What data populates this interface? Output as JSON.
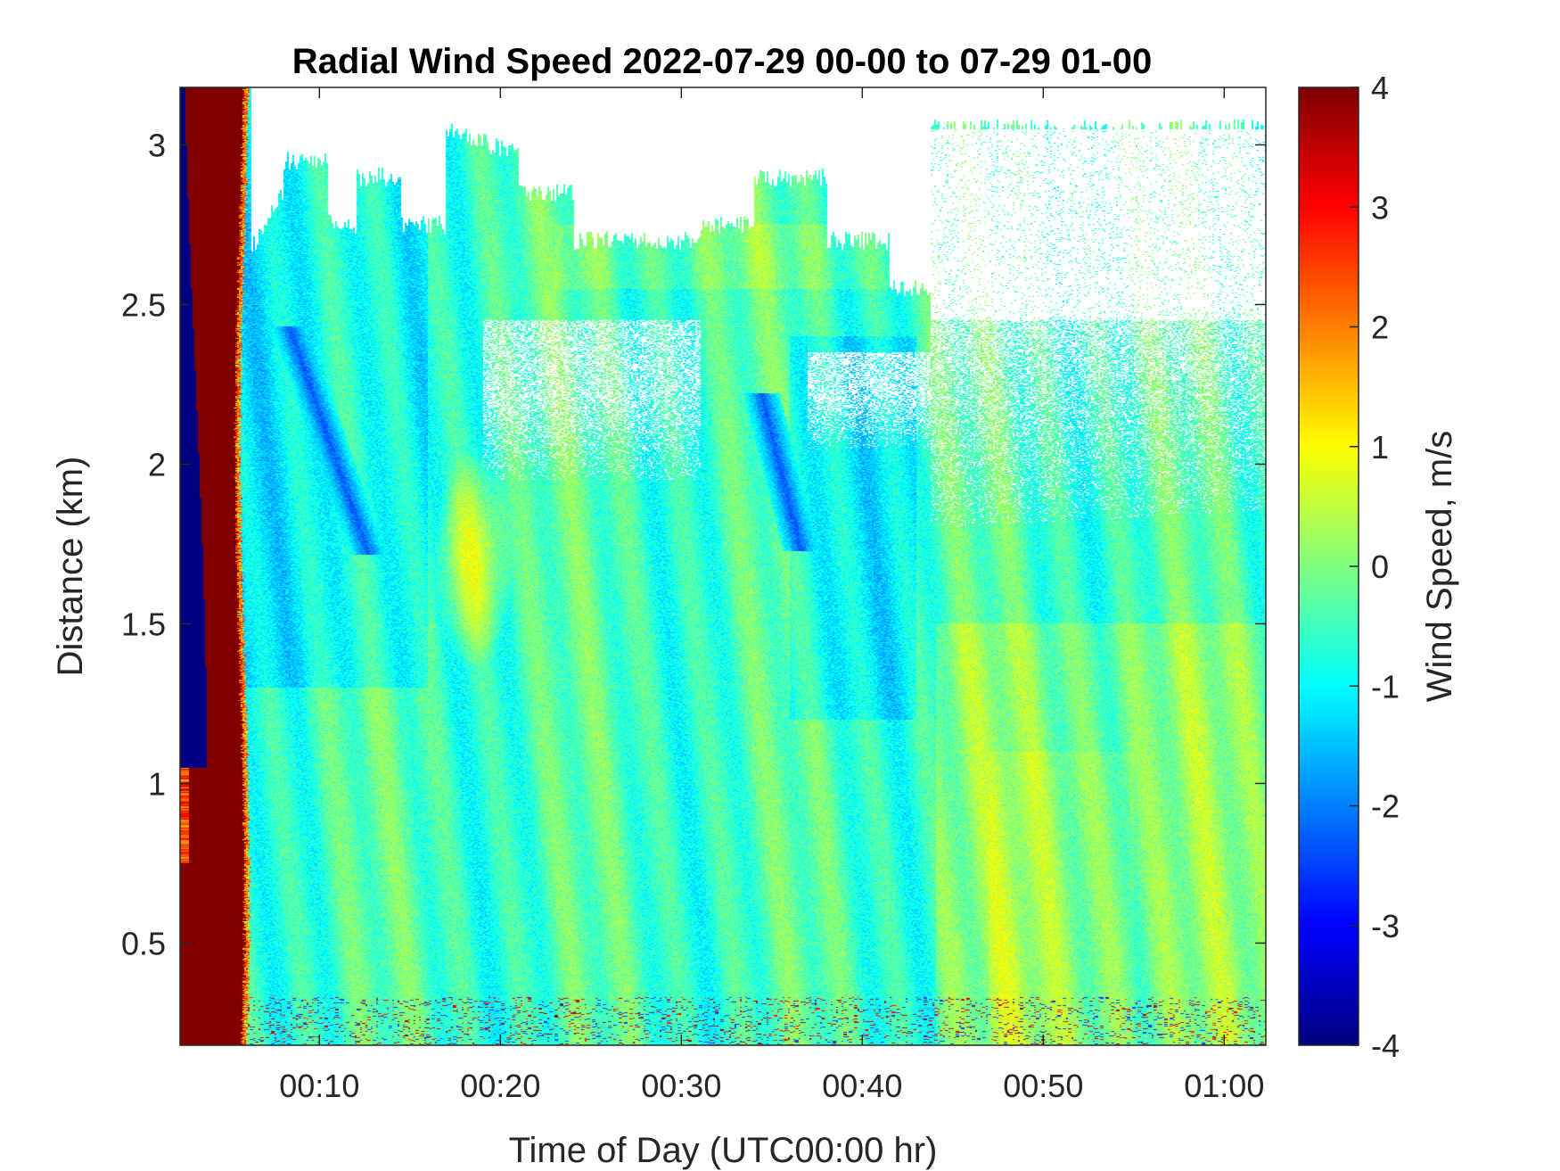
{
  "chart_data": {
    "type": "heatmap",
    "title": "Radial Wind Speed 2022-07-29 00-00 to 07-29 01-00",
    "xlabel": "Time of Day (UTC00:00 hr)",
    "ylabel": "Distance (km)",
    "colorbar_label": "Wind Speed, m/s",
    "x_ticks": [
      "00:10",
      "00:20",
      "00:30",
      "00:40",
      "00:50",
      "01:00"
    ],
    "x_tick_minutes": [
      10,
      20,
      30,
      40,
      50,
      60
    ],
    "xlim_minutes": [
      2.3,
      62.3
    ],
    "y_ticks": [
      "0.5",
      "1",
      "1.5",
      "2",
      "2.5",
      "3"
    ],
    "y_tick_values": [
      0.5,
      1,
      1.5,
      2,
      2.5,
      3
    ],
    "ylim_km": [
      0.18,
      3.18
    ],
    "colorbar_ticks": [
      "-4",
      "-3",
      "-2",
      "-1",
      "0",
      "1",
      "2",
      "3",
      "4"
    ],
    "colorbar_values": [
      -4,
      -3,
      -2,
      -1,
      0,
      1,
      2,
      3,
      4
    ],
    "clim": [
      -4,
      4
    ],
    "colormap": "jet",
    "colors": {
      "no_data": "#ffffff",
      "axes": "#262626"
    },
    "features": {
      "near_start_band": {
        "time_min": [
          2.3,
          6.0
        ],
        "outer_value": -4,
        "inner_value": 4
      },
      "dark_blue_streaks": [
        {
          "time_min": [
            8.5,
            12.5
          ],
          "km": [
            2.4,
            1.75
          ],
          "value": -2.3
        },
        {
          "time_min": [
            34.5,
            36.5
          ],
          "km": [
            2.2,
            1.75
          ],
          "value": -2.3
        }
      ],
      "yellow_patch": {
        "time_min": [
          17,
          20
        ],
        "km": [
          1.5,
          1.9
        ],
        "value": 1.0
      },
      "typical_value_range": [
        -1.2,
        0.8
      ]
    }
  }
}
